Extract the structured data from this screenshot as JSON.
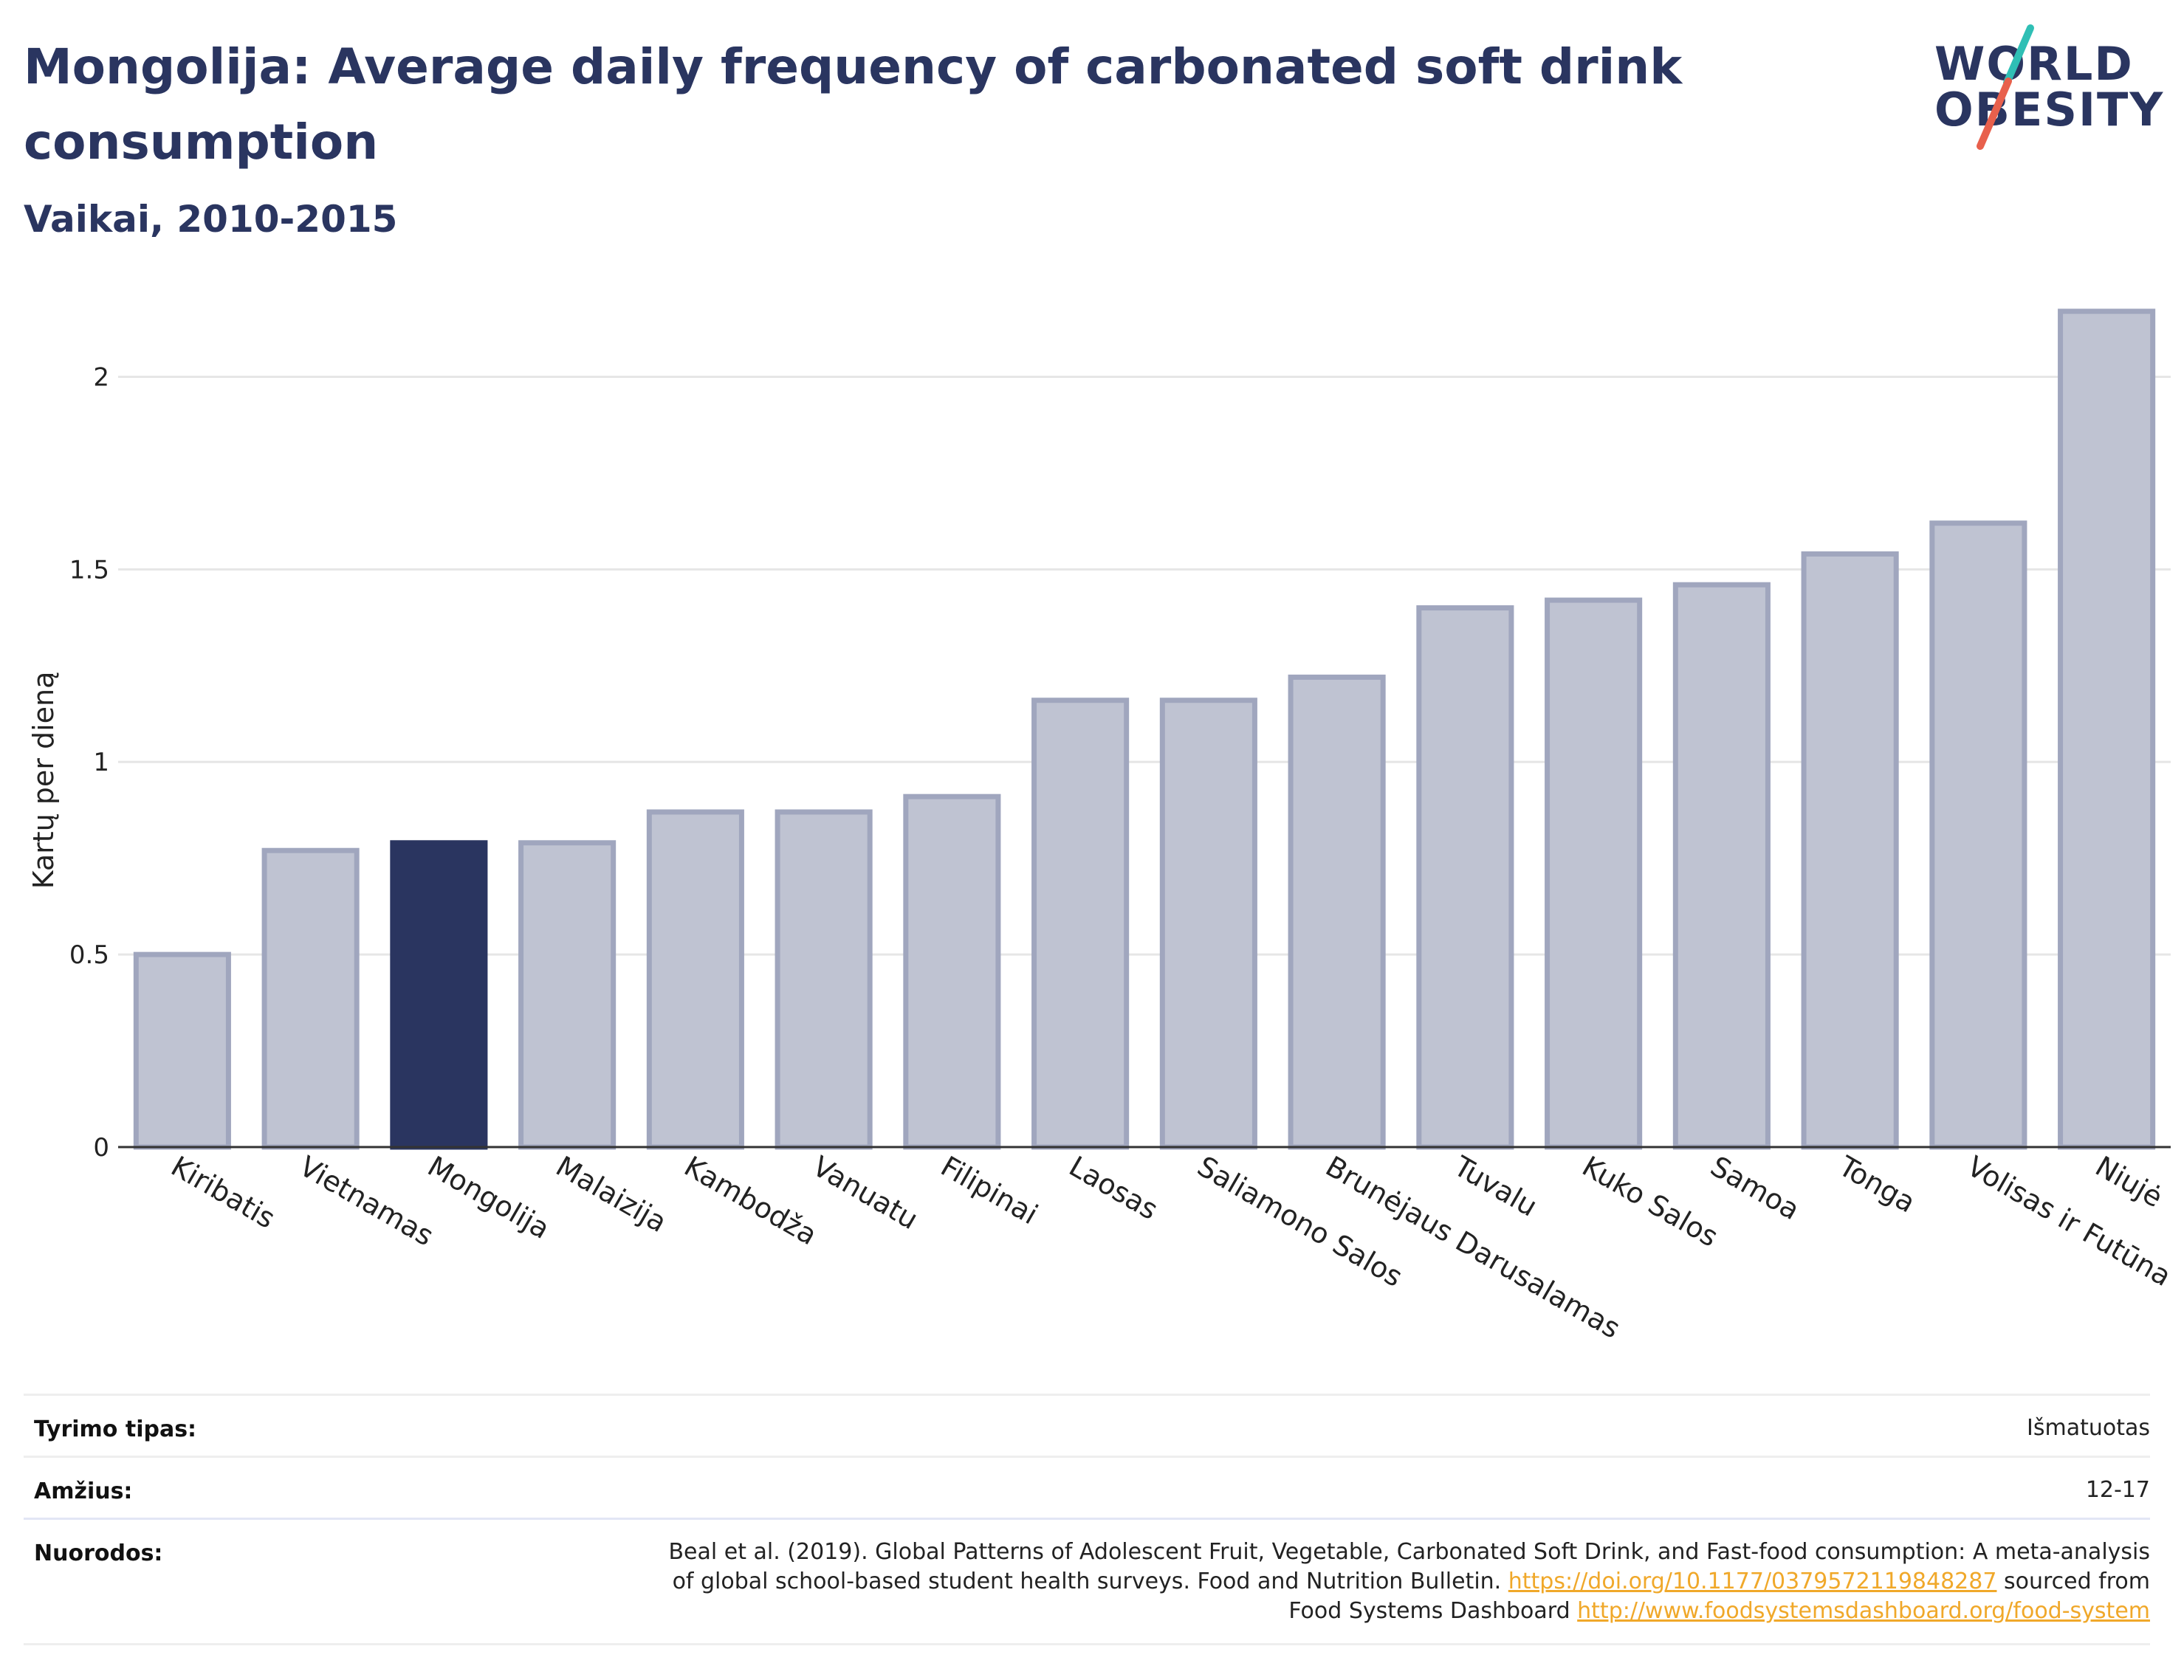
{
  "header": {
    "title": "Mongolija: Average daily frequency of carbonated soft drink consumption",
    "subtitle": "Vaikai, 2010-2015"
  },
  "logo": {
    "line1": "WORLD",
    "line2": "OBESITY",
    "colors": [
      "#2fbfb5",
      "#e8604c"
    ]
  },
  "colors": {
    "bar": "#bfc3d2",
    "bar_border": "#a0a6be",
    "highlight": "#2a3560",
    "text": "#2a3560",
    "grid": "#e6e6e6"
  },
  "chart_data": {
    "type": "bar",
    "title": "Mongolija: Average daily frequency of carbonated soft drink consumption",
    "subtitle": "Vaikai, 2010-2015",
    "xlabel": "",
    "ylabel": "Kartų per dieną",
    "ylim": [
      0,
      2.25
    ],
    "yticks": [
      0,
      0.5,
      1,
      1.5,
      2
    ],
    "ytick_labels": [
      "0",
      "0.5",
      "1",
      "1.5",
      "2"
    ],
    "grid": true,
    "highlight": "Mongolija",
    "categories": [
      "Kiribatis",
      "Vietnamas",
      "Mongolija",
      "Malaizija",
      "Kambodža",
      "Vanuatu",
      "Filipinai",
      "Laosas",
      "Saliamono Salos",
      "Brunėjaus Darusalamas",
      "Tuvalu",
      "Kuko Salos",
      "Samoa",
      "Tonga",
      "Volisas ir Futūna",
      "Niujė"
    ],
    "values": [
      0.5,
      0.77,
      0.79,
      0.79,
      0.87,
      0.87,
      0.91,
      1.16,
      1.16,
      1.22,
      1.4,
      1.42,
      1.46,
      1.54,
      1.62,
      2.17
    ]
  },
  "meta": {
    "survey_label": "Tyrimo tipas:",
    "survey_value": "Išmatuotas",
    "age_label": "Amžius:",
    "age_value": "12-17",
    "refs_label": "Nuorodos:",
    "refs_line1": "Beal et al. (2019). Global Patterns of Adolescent Fruit, Vegetable, Carbonated Soft Drink, and Fast-food consumption: A meta-analysis",
    "refs_line2_pre": "of global school-based student health surveys. Food and Nutrition Bulletin. ",
    "refs_doi": "https://doi.org/10.1177/0379572119848287",
    "refs_line2_post": " sourced from",
    "refs_line3_pre": "Food Systems Dashboard ",
    "refs_url": "http://www.foodsystemsdashboard.org/food-system"
  }
}
